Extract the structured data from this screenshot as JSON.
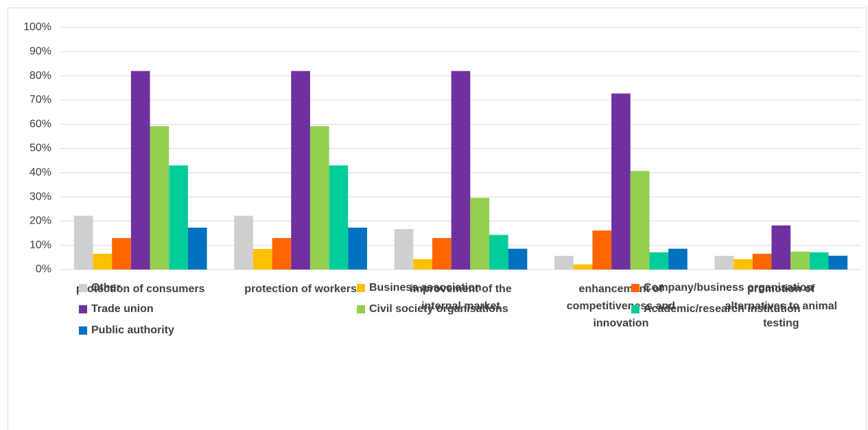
{
  "chart_data": {
    "type": "bar",
    "categories": [
      [
        "protection of consumers"
      ],
      [
        "protection of workers"
      ],
      [
        "improvement of the",
        "internal market"
      ],
      [
        "enhancement of",
        "competitiveness and",
        "innovation"
      ],
      [
        "promotion of",
        "alternatives to animal",
        "testing"
      ]
    ],
    "series": [
      {
        "name": "Other",
        "color": "#d0cece",
        "values": [
          22.2,
          22.2,
          16.7,
          5.6,
          5.6
        ]
      },
      {
        "name": "Business association",
        "color": "#ffc000",
        "values": [
          6.5,
          8.5,
          4.3,
          2.1,
          4.3
        ]
      },
      {
        "name": "Company/business organisation",
        "color": "#ff6600",
        "values": [
          13,
          13,
          13,
          16.1,
          6.5
        ]
      },
      {
        "name": "Trade union",
        "color": "#7030a0",
        "values": [
          82,
          82,
          82,
          72.7,
          18.2
        ]
      },
      {
        "name": "Civil society organisations",
        "color": "#92d050",
        "values": [
          59.2,
          59.2,
          29.6,
          40.7,
          7.4
        ]
      },
      {
        "name": "Academic/research institution",
        "color": "#00cc99",
        "values": [
          43,
          43,
          14.3,
          7.1,
          7.1
        ]
      },
      {
        "name": "Public authority",
        "color": "#0070c0",
        "values": [
          17.3,
          17.3,
          8.6,
          8.6,
          5.7
        ]
      }
    ],
    "ylim": [
      0,
      100
    ],
    "yticks": [
      {
        "value": 0,
        "label": "0%"
      },
      {
        "value": 10,
        "label": "10%"
      },
      {
        "value": 20,
        "label": "20%"
      },
      {
        "value": 30,
        "label": "30%"
      },
      {
        "value": 40,
        "label": "40%"
      },
      {
        "value": 50,
        "label": "50%"
      },
      {
        "value": 60,
        "label": "60%"
      },
      {
        "value": 70,
        "label": "70%"
      },
      {
        "value": 80,
        "label": "80%"
      },
      {
        "value": 90,
        "label": "90%"
      },
      {
        "value": 100,
        "label": "100%"
      }
    ],
    "grid": true,
    "legend": "bottom"
  }
}
